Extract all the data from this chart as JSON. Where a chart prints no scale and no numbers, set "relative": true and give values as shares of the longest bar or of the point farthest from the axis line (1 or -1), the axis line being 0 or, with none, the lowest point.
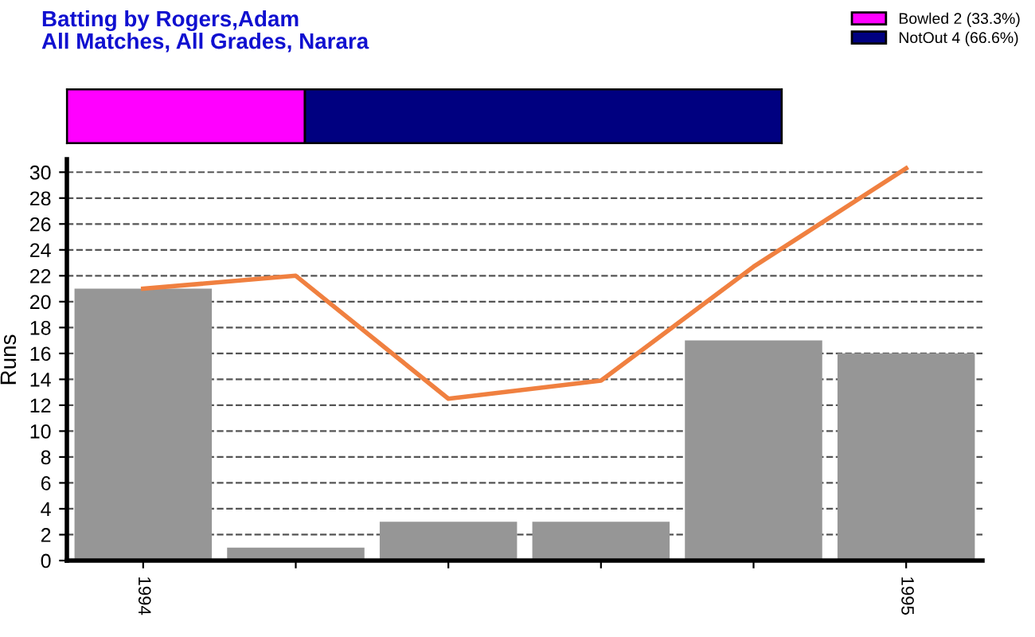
{
  "chart_data": [
    {
      "type": "bar",
      "title": "Batting by Rogers,Adam",
      "subtitle": "All Matches, All Grades, Narara",
      "orientation": "horizontal",
      "stacked": true,
      "categories": [
        null
      ],
      "relative": true,
      "tick_labels": false,
      "legend": "top right",
      "series": [
        {
          "name": "Bowled 2 (33.3%)",
          "color": "#ff00ff",
          "values": [
            0.333
          ]
        },
        {
          "name": "NotOut 4 (66.6%)",
          "color": "#000080",
          "values": [
            0.667
          ]
        }
      ]
    },
    {
      "type": "bar",
      "ylabel": "Runs",
      "categories": [
        "1994",
        null,
        null,
        null,
        null,
        "1995"
      ],
      "ylim": [
        0,
        31
      ],
      "yticks": [
        0,
        2,
        4,
        6,
        8,
        10,
        12,
        14,
        16,
        18,
        20,
        22,
        24,
        26,
        28,
        30
      ],
      "grid": "y",
      "legend": false,
      "series": [
        {
          "color": "#969696",
          "values": [
            21,
            1,
            3,
            3,
            17,
            16
          ]
        },
        {
          "type": "line",
          "color": "#f08040",
          "values": [
            21,
            22,
            12.5,
            13.9,
            22.7,
            30.3
          ]
        }
      ]
    }
  ]
}
